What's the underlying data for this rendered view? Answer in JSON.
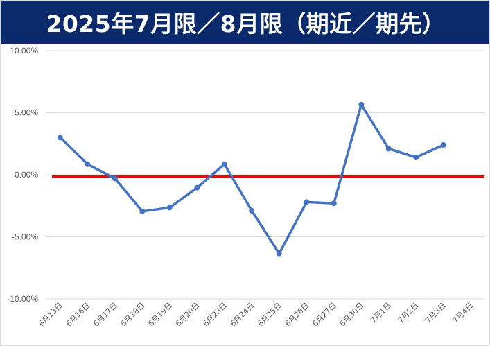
{
  "chart_data": {
    "type": "line",
    "title": "2025年7月限／8月限（期近／期先）",
    "xlabel": "",
    "ylabel": "",
    "ylim": [
      -10.0,
      10.0
    ],
    "y_ticks": [
      "10.00%",
      "5.00%",
      "0.00%",
      "-5.00%",
      "-10.00%"
    ],
    "y_tick_values": [
      10,
      5,
      0,
      -5,
      -10
    ],
    "grid": true,
    "legend": "none",
    "categories": [
      "6月13日",
      "6月16日",
      "6月17日",
      "6月18日",
      "6月19日",
      "6月20日",
      "6月23日",
      "6月24日",
      "6月25日",
      "6月26日",
      "6月27日",
      "6月30日",
      "7月1日",
      "7月2日",
      "7月3日",
      "7月4日"
    ],
    "series": [
      {
        "values": [
          3.0,
          0.85,
          -0.3,
          -2.95,
          -2.65,
          -1.05,
          0.85,
          -2.9,
          -6.35,
          -2.2,
          -2.3,
          5.65,
          2.1,
          1.4,
          2.4,
          null
        ],
        "color": "#4472c4"
      }
    ],
    "reference_line": {
      "value": -0.15,
      "color": "#ff0000"
    },
    "colors": {
      "banner": "#0b2a6b",
      "banner_text": "#ffffff",
      "grid": "#d9d9d9",
      "axis_text": "#595959"
    }
  }
}
